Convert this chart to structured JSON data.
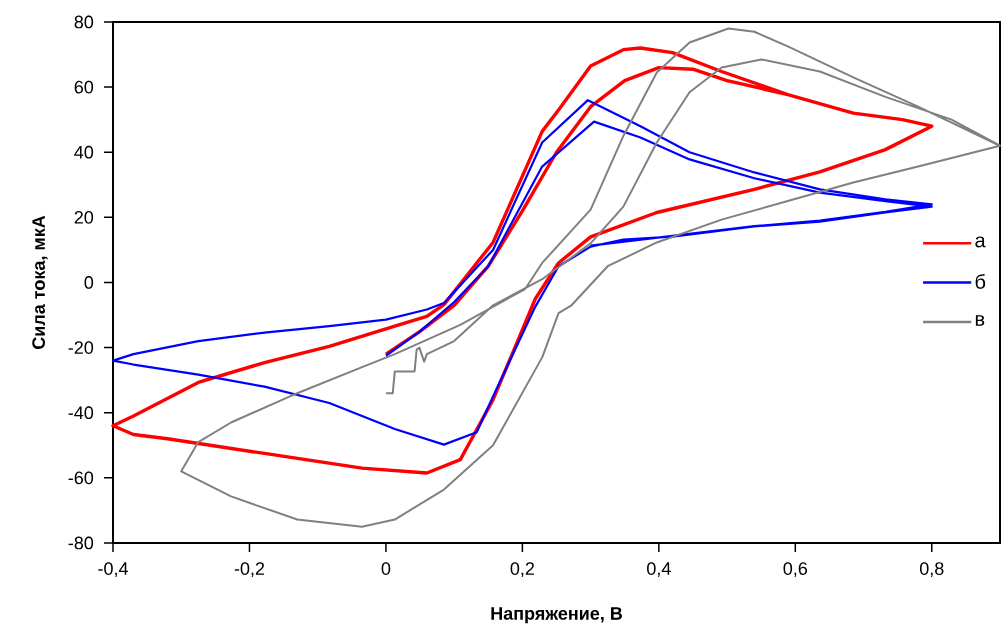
{
  "chart_data": {
    "type": "line",
    "xlabel": "Напряжение, В",
    "ylabel": "Сила тока, мкА",
    "xlim": [
      -0.4,
      0.9
    ],
    "ylim": [
      -80,
      80
    ],
    "xticks": [
      {
        "value": -0.4,
        "label": "-0,4"
      },
      {
        "value": -0.2,
        "label": "-0,2"
      },
      {
        "value": 0,
        "label": "0"
      },
      {
        "value": 0.2,
        "label": "0,2"
      },
      {
        "value": 0.4,
        "label": "0,4"
      },
      {
        "value": 0.6,
        "label": "0,6"
      },
      {
        "value": 0.8,
        "label": "0,8"
      }
    ],
    "yticks": [
      -80,
      -60,
      -40,
      -20,
      0,
      20,
      40,
      60,
      80
    ],
    "legend": "right",
    "series": [
      {
        "name": "а",
        "color": "#ff0000",
        "x": [
          0,
          0.05,
          0.1,
          0.15,
          0.2,
          0.25,
          0.3,
          0.35,
          0.4,
          0.45,
          0.5,
          0.589,
          0.685,
          0.757,
          0.8,
          0.732,
          0.636,
          0.54,
          0.397,
          0.3,
          0.253,
          0.219,
          0.157,
          0.109,
          0.06,
          -0.035,
          -0.178,
          -0.32,
          -0.37,
          -0.4,
          -0.37,
          -0.275,
          -0.178,
          -0.083,
          0.013,
          0.06,
          0.085,
          0.157,
          0.229,
          0.253,
          0.3,
          0.348,
          0.373,
          0.42,
          0.492,
          0.589,
          0.685,
          0.757,
          0.8,
          0.732,
          0.636,
          0.54,
          0.397,
          0.3,
          0.253
        ],
        "values": [
          -22,
          -15,
          -7,
          5,
          22,
          40,
          54,
          62,
          66,
          65.5,
          62,
          57.7,
          52,
          50,
          48,
          40.8,
          34,
          28.6,
          21.5,
          14,
          6,
          -5,
          -36,
          -54.4,
          -58.5,
          -57,
          -52.5,
          -48,
          -46.7,
          -44,
          -41,
          -30.7,
          -24.6,
          -19.6,
          -13.4,
          -10.4,
          -6.8,
          12.3,
          46.4,
          53,
          66.5,
          71.5,
          72,
          70.6,
          64.8,
          57.7,
          52,
          50,
          48,
          40.8,
          34,
          28.6,
          21.5,
          14,
          6
        ]
      },
      {
        "name": "б",
        "color": "#0000ff",
        "x": [
          0,
          0.05,
          0.1,
          0.15,
          0.229,
          0.305,
          0.373,
          0.445,
          0.54,
          0.636,
          0.732,
          0.8,
          0.732,
          0.636,
          0.54,
          0.42,
          0.348,
          0.3,
          0.253,
          0.219,
          0.157,
          0.133,
          0.085,
          0.013,
          -0.083,
          -0.178,
          -0.275,
          -0.37,
          -0.4,
          -0.37,
          -0.275,
          -0.178,
          -0.083,
          0,
          0.06,
          0.085,
          0.157,
          0.229,
          0.296,
          0.373,
          0.445,
          0.54,
          0.636,
          0.732,
          0.8,
          0.732,
          0.636,
          0.54,
          0.42,
          0.3
        ],
        "values": [
          -22.5,
          -15,
          -6,
          5,
          35.6,
          49.4,
          44.5,
          37.8,
          32,
          27.6,
          25,
          23.3,
          21.5,
          18.7,
          17.2,
          14.1,
          13.2,
          11,
          5,
          -7.4,
          -35,
          -46,
          -49.8,
          -45,
          -37,
          -32,
          -28.3,
          -25.2,
          -24,
          -22,
          -18,
          -15.4,
          -13.4,
          -11.4,
          -8.3,
          -6.3,
          10,
          43,
          56,
          48,
          40,
          33.8,
          28.6,
          25.5,
          24,
          21.7,
          19,
          17.3,
          14.3,
          11.3
        ]
      },
      {
        "name": "в",
        "color": "#808080",
        "x": [
          0,
          0.01,
          0.013,
          0.042,
          0.045,
          0.049,
          0.056,
          0.06,
          0.1,
          0.157,
          0.229,
          0.3,
          0.348,
          0.397,
          0.445,
          0.492,
          0.55,
          0.636,
          0.732,
          0.829,
          0.9,
          0.78,
          0.685,
          0.589,
          0.492,
          0.397,
          0.325,
          0.272,
          0.253,
          0.229,
          0.157,
          0.085,
          0.013,
          -0.035,
          -0.13,
          -0.227,
          -0.3,
          -0.275,
          -0.227,
          -0.13,
          -0.035,
          0.013,
          0.109,
          0.204,
          0.229,
          0.3,
          0.348,
          0.397,
          0.445,
          0.502,
          0.54,
          0.589,
          0.685,
          0.78,
          0.9
        ],
        "values": [
          -34,
          -34,
          -27.3,
          -27.3,
          -20.6,
          -20,
          -24.3,
          -22,
          -18,
          -7,
          1,
          12,
          23.3,
          43,
          58.4,
          66,
          68.5,
          64.8,
          57,
          50,
          42,
          35.6,
          30.7,
          25,
          19.3,
          12.3,
          5,
          -7,
          -9.4,
          -23,
          -50,
          -63.6,
          -72.8,
          -75,
          -72.8,
          -65.7,
          -58,
          -49,
          -43,
          -34,
          -26,
          -22,
          -13,
          -2,
          6,
          22.4,
          45,
          64.5,
          73.7,
          78,
          77,
          72.5,
          63,
          54,
          42
        ]
      }
    ]
  }
}
